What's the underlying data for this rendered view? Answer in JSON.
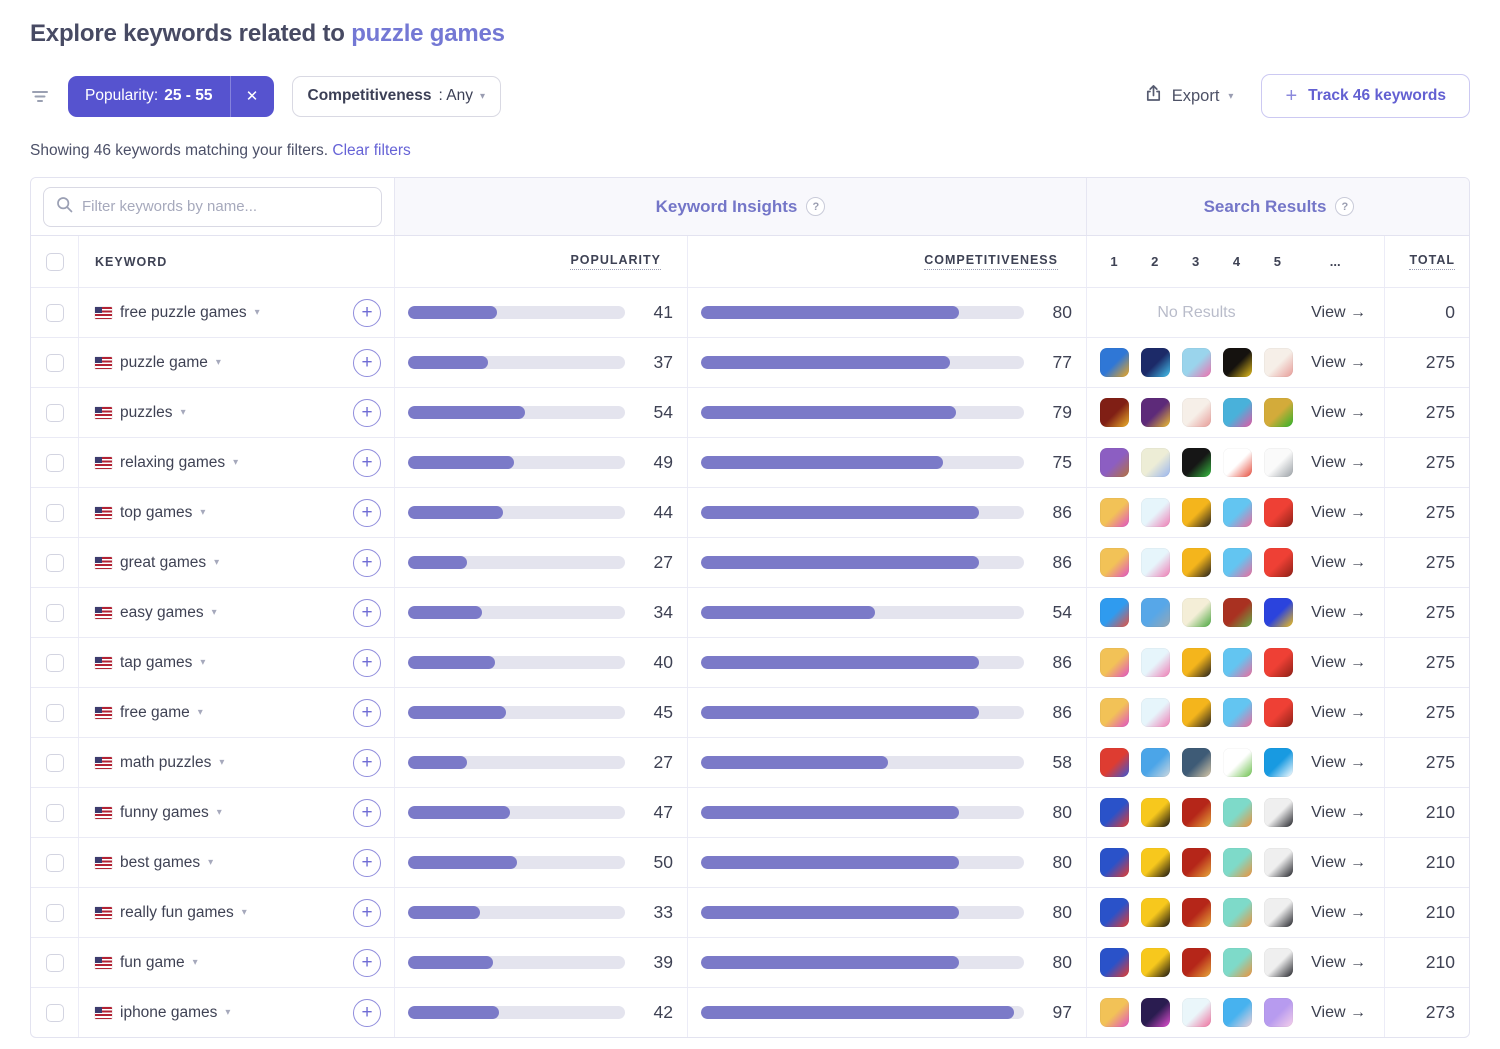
{
  "page": {
    "title_prefix": "Explore keywords related to ",
    "title_keyword": "puzzle games"
  },
  "glyphs": {
    "caret": "▾",
    "close": "✕",
    "plus": "+",
    "ellipsis": "..."
  },
  "filters": {
    "popularity_pill": {
      "label": "Popularity:",
      "value": "25 - 55"
    },
    "competitiveness": {
      "label": "Competitiveness",
      "value": ": Any"
    },
    "summary": "Showing 46 keywords matching your filters.",
    "clear": "Clear filters"
  },
  "toolbar": {
    "export_label": "Export",
    "track_label": "Track 46 keywords"
  },
  "colors": {
    "accent_purple": "#5653cf",
    "bar_fill": "#7b7ac8",
    "bar_track": "#e4e4ee",
    "link_purple": "#6663d6",
    "band_purple": "#7476c8",
    "row_border": "#eaeaf5"
  },
  "table": {
    "search_placeholder": "Filter keywords by name...",
    "groups": {
      "insights": "Keyword Insights",
      "results": "Search Results",
      "help": "?"
    },
    "columns": {
      "keyword": "KEYWORD",
      "popularity": "POPULARITY",
      "competitiveness": "COMPETITIVENESS",
      "ranks": [
        "1",
        "2",
        "3",
        "4",
        "5",
        "..."
      ],
      "total": "TOTAL"
    },
    "view_label": "View →",
    "no_results_label": "No Results",
    "icon_sets": {
      "puzzle_game": [
        {
          "name": "jigsaw-blue-gold-icon",
          "c1": "#2f77d6",
          "c2": "#f2a71b"
        },
        {
          "name": "block-puzzle-icon",
          "c1": "#1c2a68",
          "c2": "#45c4ef"
        },
        {
          "name": "hex-puzzle-icon",
          "c1": "#9ad4ec",
          "c2": "#ef6fae"
        },
        {
          "name": "flow-lines-icon",
          "c1": "#15120f",
          "c2": "#e8c11c"
        },
        {
          "name": "brain-test-icon",
          "c1": "#f6efe8",
          "c2": "#e79b97"
        }
      ],
      "puzzles": [
        {
          "name": "jigsaw-red-icon",
          "c1": "#801f15",
          "c2": "#eeb22a"
        },
        {
          "name": "jigsaw-purple-icon",
          "c1": "#5d2a79",
          "c2": "#f0c02f"
        },
        {
          "name": "brain-test-icon",
          "c1": "#f6efe8",
          "c2": "#e79b97"
        },
        {
          "name": "tile-collage-icon",
          "c1": "#49b1da",
          "c2": "#e557a5"
        },
        {
          "name": "jigsaw-green-icon",
          "c1": "#d3ab3a",
          "c2": "#2eb32a"
        }
      ],
      "relaxing": [
        {
          "name": "pottery-icon",
          "c1": "#8c5ec2",
          "c2": "#b5713d"
        },
        {
          "name": "gradient-heart-icon",
          "c1": "#ededd6",
          "c2": "#98b5ef"
        },
        {
          "name": "color-wheel-icon",
          "c1": "#161616",
          "c2": "#37bf41"
        },
        {
          "name": "lips-icon",
          "c1": "#ffffff",
          "c2": "#e74c3c"
        },
        {
          "name": "tap-hand-icon",
          "c1": "#fafafa",
          "c2": "#9aa0a6"
        }
      ],
      "arcade": [
        {
          "name": "color-roll-icon",
          "c1": "#f2c257",
          "c2": "#e052c4"
        },
        {
          "name": "brain-dots-icon",
          "c1": "#e6f5fb",
          "c2": "#ef7cb4"
        },
        {
          "name": "run-race-icon",
          "c1": "#f4b51c",
          "c2": "#23201c"
        },
        {
          "name": "bike-race-icon",
          "c1": "#63c5f1",
          "c2": "#ef6a9d"
        },
        {
          "name": "burger-icon",
          "c1": "#ee4035",
          "c2": "#8d2016"
        }
      ],
      "easy": [
        {
          "name": "stress-man-icon",
          "c1": "#2f9bef",
          "c2": "#ea4f3d"
        },
        {
          "name": "talking-tom-icon",
          "c1": "#57a7e8",
          "c2": "#97a7b3"
        },
        {
          "name": "veggie-slice-icon",
          "c1": "#f4eed7",
          "c2": "#49a73e"
        },
        {
          "name": "fruit-slice-icon",
          "c1": "#a93121",
          "c2": "#65b249"
        },
        {
          "name": "cupcake-icon",
          "c1": "#2b43dd",
          "c2": "#f3c117"
        }
      ],
      "math": [
        {
          "name": "brain-halves-icon",
          "c1": "#de3c31",
          "c2": "#3a57d6"
        },
        {
          "name": "koala-quiz-icon",
          "c1": "#4ba5e8",
          "c2": "#cfd9df"
        },
        {
          "name": "brain-gears-icon",
          "c1": "#3e5b76",
          "c2": "#d9c9a9"
        },
        {
          "name": "tic-tac-toe-icon",
          "c1": "#ffffff",
          "c2": "#6cc14d"
        },
        {
          "name": "hex-brain-icon",
          "c1": "#189ae1",
          "c2": "#ffffff"
        }
      ],
      "fun": [
        {
          "name": "pokeball-icon",
          "c1": "#2a52c9",
          "c2": "#e93b2e"
        },
        {
          "name": "brawl-skull-icon",
          "c1": "#f7c81d",
          "c2": "#171310"
        },
        {
          "name": "clash-king-icon",
          "c1": "#b52619",
          "c2": "#e9a93a"
        },
        {
          "name": "cooking-icon",
          "c1": "#7edac9",
          "c2": "#ef9239"
        },
        {
          "name": "asphalt-car-icon",
          "c1": "#efefef",
          "c2": "#23242a"
        }
      ],
      "iphone": [
        {
          "name": "color-roll-icon",
          "c1": "#f2c257",
          "c2": "#e052c4"
        },
        {
          "name": "juice-cup-icon",
          "c1": "#2a1c50",
          "c2": "#e44fd2"
        },
        {
          "name": "brain-dots-pink-icon",
          "c1": "#eaf6fa",
          "c2": "#ef6f9d"
        },
        {
          "name": "bike-jump-icon",
          "c1": "#47b2ef",
          "c2": "#f2d3da"
        },
        {
          "name": "angel-icon",
          "c1": "#b79bef",
          "c2": "#f6d0ea"
        }
      ]
    },
    "rows": [
      {
        "keyword": "free puzzle games",
        "popularity": 41,
        "competitiveness": 80,
        "no_results": true,
        "icon_set": null,
        "total": 0
      },
      {
        "keyword": "puzzle game",
        "popularity": 37,
        "competitiveness": 77,
        "no_results": false,
        "icon_set": "puzzle_game",
        "total": 275
      },
      {
        "keyword": "puzzles",
        "popularity": 54,
        "competitiveness": 79,
        "no_results": false,
        "icon_set": "puzzles",
        "total": 275
      },
      {
        "keyword": "relaxing games",
        "popularity": 49,
        "competitiveness": 75,
        "no_results": false,
        "icon_set": "relaxing",
        "total": 275
      },
      {
        "keyword": "top games",
        "popularity": 44,
        "competitiveness": 86,
        "no_results": false,
        "icon_set": "arcade",
        "total": 275
      },
      {
        "keyword": "great games",
        "popularity": 27,
        "competitiveness": 86,
        "no_results": false,
        "icon_set": "arcade",
        "total": 275
      },
      {
        "keyword": "easy games",
        "popularity": 34,
        "competitiveness": 54,
        "no_results": false,
        "icon_set": "easy",
        "total": 275
      },
      {
        "keyword": "tap games",
        "popularity": 40,
        "competitiveness": 86,
        "no_results": false,
        "icon_set": "arcade",
        "total": 275
      },
      {
        "keyword": "free game",
        "popularity": 45,
        "competitiveness": 86,
        "no_results": false,
        "icon_set": "arcade",
        "total": 275
      },
      {
        "keyword": "math puzzles",
        "popularity": 27,
        "competitiveness": 58,
        "no_results": false,
        "icon_set": "math",
        "total": 275
      },
      {
        "keyword": "funny games",
        "popularity": 47,
        "competitiveness": 80,
        "no_results": false,
        "icon_set": "fun",
        "total": 210
      },
      {
        "keyword": "best games",
        "popularity": 50,
        "competitiveness": 80,
        "no_results": false,
        "icon_set": "fun",
        "total": 210
      },
      {
        "keyword": "really fun games",
        "popularity": 33,
        "competitiveness": 80,
        "no_results": false,
        "icon_set": "fun",
        "total": 210
      },
      {
        "keyword": "fun game",
        "popularity": 39,
        "competitiveness": 80,
        "no_results": false,
        "icon_set": "fun",
        "total": 210
      },
      {
        "keyword": "iphone games",
        "popularity": 42,
        "competitiveness": 97,
        "no_results": false,
        "icon_set": "iphone",
        "total": 273
      }
    ]
  }
}
